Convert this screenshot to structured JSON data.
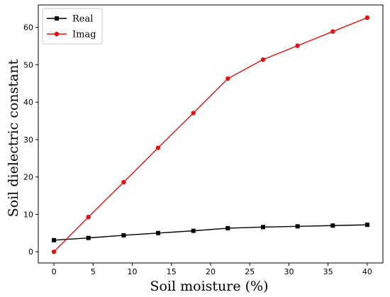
{
  "chart_data": {
    "type": "line",
    "xlabel": "Soil moisture (%)",
    "ylabel": "Soil dielectric constant",
    "xlim": [
      -2,
      42
    ],
    "ylim": [
      -3,
      66
    ],
    "xticks": [
      0,
      5,
      10,
      15,
      20,
      25,
      30,
      35,
      40
    ],
    "yticks": [
      0,
      10,
      20,
      30,
      40,
      50,
      60
    ],
    "grid": false,
    "legend_position": "top-left",
    "x": [
      0,
      4.4,
      8.9,
      13.3,
      17.8,
      22.2,
      26.7,
      31.1,
      35.6,
      40
    ],
    "series": [
      {
        "name": "Real",
        "color": "#000000",
        "marker": "square",
        "values": [
          3.1,
          3.7,
          4.4,
          5.0,
          5.6,
          6.3,
          6.6,
          6.8,
          7.0,
          7.2
        ]
      },
      {
        "name": "Imag",
        "color": "#e8100f",
        "marker": "circle",
        "values": [
          0.0,
          9.3,
          18.6,
          27.8,
          37.1,
          46.3,
          51.4,
          55.1,
          58.9,
          62.6
        ]
      }
    ]
  }
}
